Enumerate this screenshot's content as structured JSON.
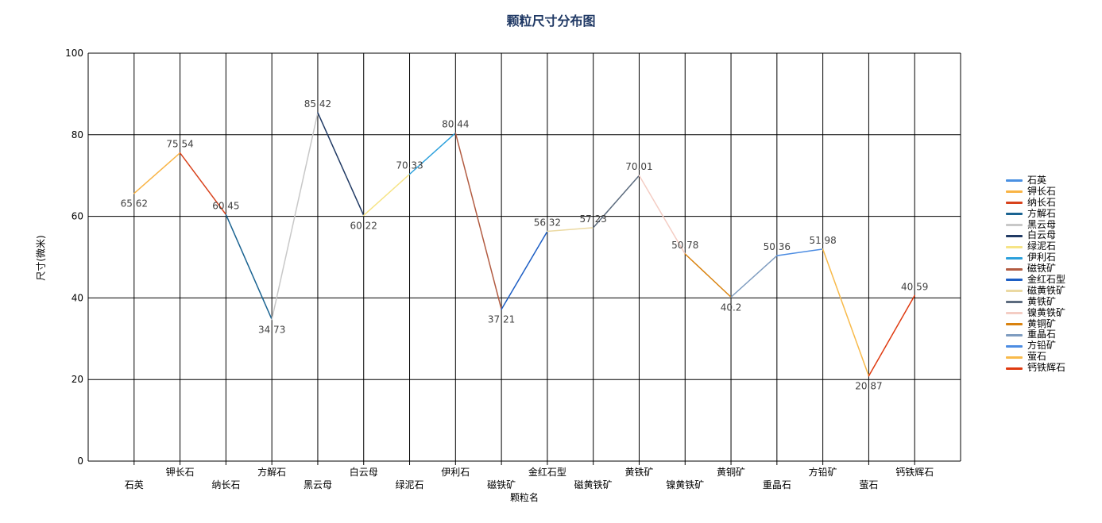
{
  "chart_data": {
    "type": "line",
    "title": "颗粒尺寸分布图",
    "xlabel": "颗粒名",
    "ylabel": "尺寸(微米)",
    "ylim": [
      0,
      100
    ],
    "y_ticks": [
      0,
      20,
      40,
      60,
      80,
      100
    ],
    "grid": true,
    "legend_position": "right",
    "categories": [
      "石英",
      "钾长石",
      "纳长石",
      "方解石",
      "黑云母",
      "白云母",
      "绿泥石",
      "伊利石",
      "磁铁矿",
      "金红石型",
      "磁黄铁矿",
      "黄铁矿",
      "镍黄铁矿",
      "黄铜矿",
      "重晶石",
      "方铅矿",
      "萤石",
      "钙铁辉石"
    ],
    "series": [
      {
        "name": "石英",
        "value": 65.62,
        "color": "#4a90e2"
      },
      {
        "name": "钾长石",
        "value": 75.54,
        "color": "#f9b445"
      },
      {
        "name": "纳长石",
        "value": 60.45,
        "color": "#d8421c"
      },
      {
        "name": "方解石",
        "value": 34.73,
        "color": "#1a6391"
      },
      {
        "name": "黑云母",
        "value": 85.42,
        "color": "#c8c8c8"
      },
      {
        "name": "白云母",
        "value": 60.22,
        "color": "#203a64"
      },
      {
        "name": "绿泥石",
        "value": 70.33,
        "color": "#f6e486"
      },
      {
        "name": "伊利石",
        "value": 80.44,
        "color": "#2ba0dc"
      },
      {
        "name": "磁铁矿",
        "value": 37.21,
        "color": "#b25b41"
      },
      {
        "name": "金红石型",
        "value": 56.32,
        "color": "#1d5ec4"
      },
      {
        "name": "磁黄铁矿",
        "value": 57.23,
        "color": "#ebd9a2"
      },
      {
        "name": "黄铁矿",
        "value": 70.01,
        "color": "#5c6b7e"
      },
      {
        "name": "镍黄铁矿",
        "value": 50.78,
        "color": "#f4cdc4"
      },
      {
        "name": "黄铜矿",
        "value": 40.2,
        "color": "#d9820e"
      },
      {
        "name": "重晶石",
        "value": 50.36,
        "color": "#7e9cc0"
      },
      {
        "name": "方铅矿",
        "value": 51.98,
        "color": "#4c8ce2"
      },
      {
        "name": "萤石",
        "value": 20.87,
        "color": "#f8ba4a"
      },
      {
        "name": "钙铁辉石",
        "value": 40.59,
        "color": "#df3a10"
      }
    ],
    "colors": {
      "title": "#1f3864",
      "axis": "#000000",
      "point_label": "#404040",
      "background": "#ffffff"
    }
  }
}
